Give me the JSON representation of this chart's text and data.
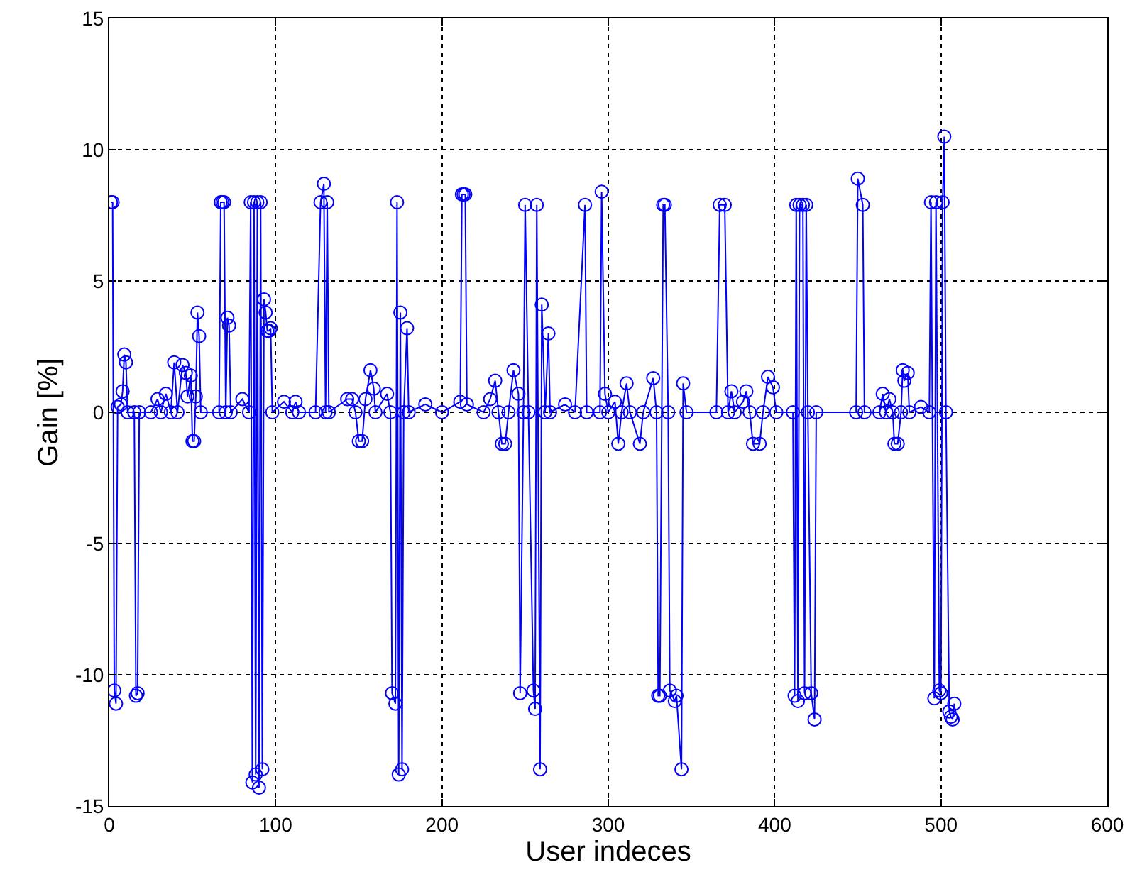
{
  "chart_data": {
    "type": "line",
    "xlabel": "User indeces",
    "ylabel": "Gain [%]",
    "xlim": [
      0,
      600
    ],
    "xticks": [
      0,
      100,
      200,
      300,
      400,
      500,
      600
    ],
    "ylim": [
      -15,
      15
    ],
    "yticks": [
      -15,
      -10,
      -5,
      0,
      5,
      10,
      15
    ],
    "grid": true,
    "marker": "circle",
    "line_style": "solid",
    "series": [
      {
        "color": "#0000ff",
        "x": [
          1,
          2,
          3,
          4,
          5,
          7,
          8,
          9,
          10,
          11,
          15,
          16,
          17,
          18,
          25,
          29,
          31,
          34,
          37,
          39,
          41,
          44,
          46,
          47,
          49,
          50,
          51,
          52,
          53,
          54,
          55,
          66,
          67,
          68,
          69,
          70,
          71,
          72,
          73,
          80,
          84,
          85,
          86,
          87,
          88,
          89,
          90,
          91,
          92,
          93,
          94,
          95,
          96,
          97,
          98,
          105,
          110,
          112,
          114,
          124,
          127,
          129,
          130,
          131,
          132,
          143,
          146,
          148,
          150,
          152,
          154,
          157,
          159,
          160,
          167,
          169,
          170,
          172,
          173,
          174,
          175,
          176,
          177,
          179,
          180,
          190,
          200,
          211,
          212,
          213,
          214,
          215,
          225,
          229,
          232,
          234,
          236,
          238,
          240,
          243,
          246,
          247,
          249,
          250,
          252,
          255,
          256,
          257,
          259,
          260,
          262,
          264,
          265,
          274,
          280,
          286,
          287,
          295,
          296,
          298,
          300,
          304,
          306,
          308,
          311,
          313,
          319,
          321,
          327,
          329,
          330,
          331,
          333,
          334,
          336,
          337,
          340,
          341,
          344,
          345,
          347,
          365,
          367,
          370,
          372,
          374,
          376,
          381,
          383,
          385,
          387,
          391,
          393,
          396,
          399,
          401,
          411,
          412,
          413,
          414,
          415,
          417,
          418,
          419,
          420,
          422,
          424,
          425,
          449,
          450,
          453,
          454,
          463,
          465,
          467,
          469,
          471,
          472,
          474,
          476,
          477,
          478,
          480,
          481,
          488,
          493,
          494,
          496,
          497,
          499,
          500,
          501,
          502,
          503,
          505,
          506,
          507,
          508
        ],
        "values": [
          8,
          8,
          -10.6,
          -11.1,
          0.2,
          0.3,
          0.8,
          2.2,
          1.9,
          0,
          0,
          -10.8,
          -10.7,
          0,
          0,
          0.5,
          0,
          0.7,
          0,
          1.9,
          0,
          1.8,
          1.5,
          0.6,
          1.4,
          -1.1,
          -1.1,
          0.6,
          3.8,
          2.9,
          0,
          0,
          8,
          8,
          8,
          0,
          3.6,
          3.3,
          0,
          0.5,
          0,
          8,
          -14.1,
          8,
          -13.8,
          8,
          -14.3,
          8,
          -13.6,
          4.3,
          3.8,
          3.1,
          3.1,
          3.2,
          0,
          0.4,
          0,
          0.4,
          0,
          0,
          8,
          8.7,
          0,
          8,
          0,
          0.5,
          0.5,
          0,
          -1.1,
          -1.1,
          0.5,
          1.6,
          0.9,
          0,
          0.7,
          0,
          -10.7,
          -11.1,
          8,
          -13.8,
          3.8,
          -13.6,
          0,
          3.2,
          0,
          0.3,
          0,
          0.4,
          8.3,
          8.3,
          8.3,
          0.3,
          0,
          0.5,
          1.2,
          0,
          -1.2,
          -1.2,
          0,
          1.6,
          0.7,
          -10.7,
          0,
          7.9,
          0,
          -10.6,
          -11.3,
          7.9,
          -13.6,
          4.1,
          0,
          3,
          0,
          0.3,
          0,
          7.9,
          0,
          0,
          8.4,
          0.7,
          0,
          0.4,
          -1.2,
          0,
          1.1,
          0,
          -1.2,
          0,
          1.3,
          0,
          -10.8,
          -10.8,
          7.9,
          7.9,
          0,
          -10.6,
          -11,
          -10.8,
          -13.6,
          1.1,
          0,
          0,
          7.9,
          7.9,
          0,
          0.8,
          0,
          0.4,
          0.8,
          0,
          -1.2,
          -1.2,
          0,
          1.35,
          0.95,
          0,
          0,
          -10.8,
          7.9,
          -11,
          7.9,
          7.9,
          -10.7,
          7.9,
          0,
          -10.7,
          -11.7,
          0,
          0,
          8.9,
          7.9,
          0,
          0,
          0.7,
          0,
          0.5,
          0,
          -1.2,
          -1.2,
          0,
          1.6,
          1.2,
          1.5,
          0,
          0.2,
          0,
          8,
          -10.9,
          8,
          -10.6,
          -10.7,
          8,
          10.5,
          0,
          -11.4,
          -11.6,
          -11.7,
          -11.1
        ]
      }
    ]
  }
}
